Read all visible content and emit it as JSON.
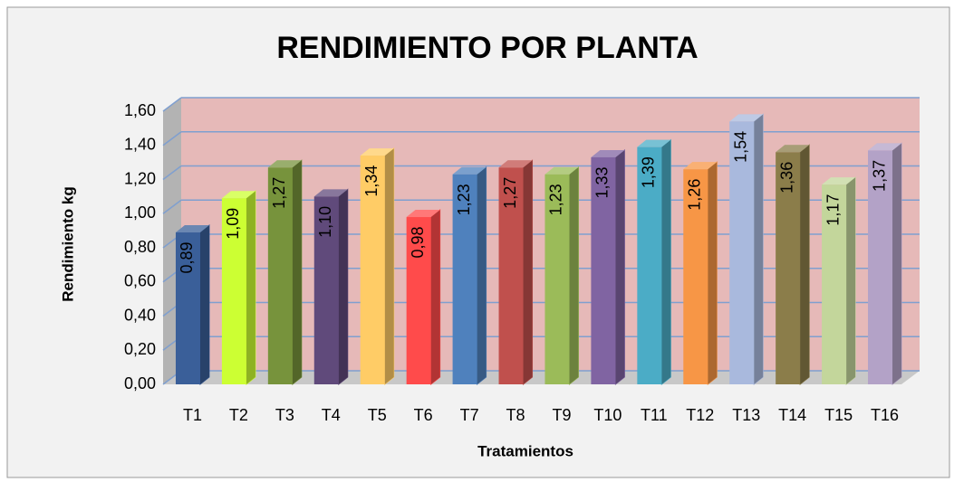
{
  "chart_data": {
    "type": "bar",
    "title": "RENDIMIENTO POR PLANTA",
    "xlabel": "Tratamientos",
    "ylabel": "Rendimiento kg",
    "categories": [
      "T1",
      "T2",
      "T3",
      "T4",
      "T5",
      "T6",
      "T7",
      "T8",
      "T9",
      "T10",
      "T11",
      "T12",
      "T13",
      "T14",
      "T15",
      "T16"
    ],
    "values": [
      0.89,
      1.09,
      1.27,
      1.1,
      1.34,
      0.98,
      1.23,
      1.27,
      1.23,
      1.33,
      1.39,
      1.26,
      1.54,
      1.36,
      1.17,
      1.37
    ],
    "value_labels": [
      "0,89",
      "1,09",
      "1,27",
      "1,10",
      "1,34",
      "0,98",
      "1,23",
      "1,27",
      "1,23",
      "1,33",
      "1,39",
      "1,26",
      "1,54",
      "1,36",
      "1,17",
      "1,37"
    ],
    "colors": [
      "#3a5f99",
      "#ccff33",
      "#77933c",
      "#604a7b",
      "#ffcc66",
      "#ff4b4b",
      "#4f81bd",
      "#c0504d",
      "#9bbb59",
      "#8064a2",
      "#4bacc6",
      "#f79646",
      "#a9b9dd",
      "#8b7d4a",
      "#c3d69b",
      "#b3a2c7"
    ],
    "ylim": [
      0,
      1.6
    ],
    "yticks": [
      {
        "value": 0,
        "label": "0,00"
      },
      {
        "value": 0.2,
        "label": "0,20"
      },
      {
        "value": 0.4,
        "label": "0,40"
      },
      {
        "value": 0.6,
        "label": "0,60"
      },
      {
        "value": 0.8,
        "label": "0,80"
      },
      {
        "value": 1.0,
        "label": "1,00"
      },
      {
        "value": 1.2,
        "label": "1,20"
      },
      {
        "value": 1.4,
        "label": "1,40"
      },
      {
        "value": 1.6,
        "label": "1,60"
      }
    ],
    "grid": true
  }
}
